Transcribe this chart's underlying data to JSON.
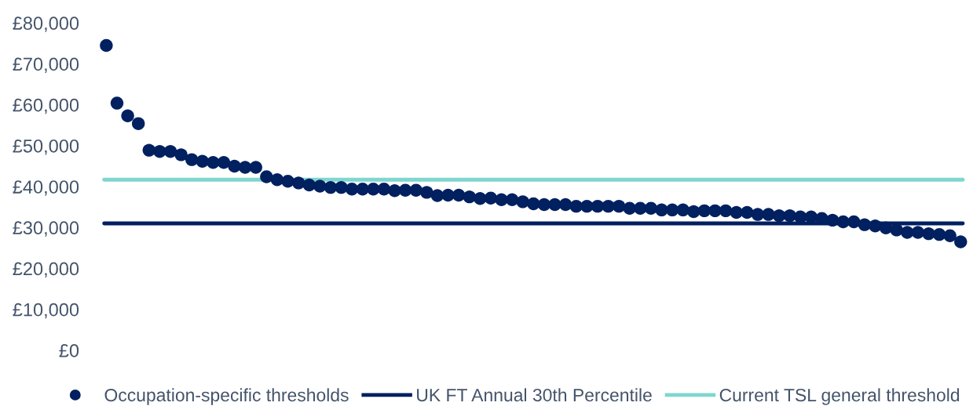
{
  "chart_data": {
    "type": "scatter",
    "categories": [
      null,
      null,
      null,
      null,
      null,
      null,
      null,
      null,
      null,
      null,
      null,
      null,
      null,
      null,
      null,
      null,
      null,
      null,
      null,
      null,
      null,
      null,
      null,
      null,
      null,
      null,
      null,
      null,
      null,
      null,
      null,
      null,
      null,
      null,
      null,
      null,
      null,
      null,
      null,
      null,
      null,
      null,
      null,
      null,
      null,
      null,
      null,
      null,
      null,
      null,
      null,
      null,
      null,
      null,
      null,
      null,
      null,
      null,
      null,
      null,
      null,
      null,
      null,
      null,
      null,
      null,
      null,
      null,
      null,
      null,
      null,
      null,
      null,
      null,
      null,
      null,
      null,
      null,
      null,
      null,
      null
    ],
    "series": [
      {
        "name": "Occupation-specific thresholds",
        "color": "#002060",
        "values": [
          74500,
          60400,
          57300,
          55400,
          48900,
          48600,
          48600,
          47800,
          46600,
          46200,
          45900,
          45900,
          45000,
          44700,
          44700,
          42400,
          41700,
          41300,
          40900,
          40400,
          40100,
          39800,
          39800,
          39400,
          39400,
          39400,
          39400,
          39000,
          39100,
          39100,
          38600,
          37800,
          37900,
          37900,
          37500,
          37100,
          37200,
          36800,
          36800,
          36300,
          35800,
          35600,
          35600,
          35600,
          35200,
          35200,
          35200,
          35200,
          35200,
          34700,
          34700,
          34700,
          34300,
          34300,
          34300,
          33900,
          34100,
          34100,
          34100,
          33700,
          33700,
          33200,
          33200,
          32900,
          32900,
          32600,
          32600,
          32200,
          31800,
          31400,
          31400,
          30700,
          30400,
          29900,
          29400,
          28800,
          28800,
          28500,
          28300,
          28000,
          26500
        ]
      }
    ],
    "ref_lines": [
      {
        "axis": "y",
        "value": 31000,
        "label": "UK FT Annual 30th Percentile",
        "color": "#002060"
      },
      {
        "axis": "y",
        "value": 41700,
        "label": "Current TSL general threshold",
        "color": "#7fd6cf"
      }
    ],
    "ylim": [
      0,
      80000
    ],
    "yticks": [
      {
        "value": 0,
        "label": "£0"
      },
      {
        "value": 10000,
        "label": "£10,000"
      },
      {
        "value": 20000,
        "label": "£20,000"
      },
      {
        "value": 30000,
        "label": "£30,000"
      },
      {
        "value": 40000,
        "label": "£40,000"
      },
      {
        "value": 50000,
        "label": "£50,000"
      },
      {
        "value": 60000,
        "label": "£60,000"
      },
      {
        "value": 70000,
        "label": "£70,000"
      },
      {
        "value": 80000,
        "label": "£80,000"
      }
    ],
    "grid": false,
    "legend": "bottom",
    "marker": "circle",
    "tick_labels": "y"
  }
}
